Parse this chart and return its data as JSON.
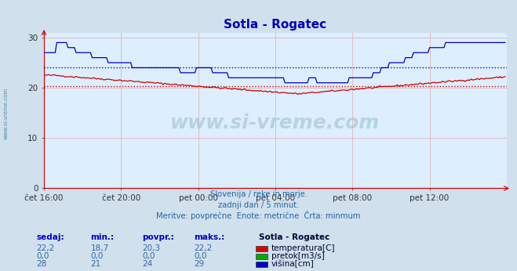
{
  "title": "Sotla - Rogatec",
  "bg_color": "#d0e0ec",
  "plot_bg_color": "#ddeeff",
  "title_color": "#0000bb",
  "watermark_text": "www.si-vreme.com",
  "subtitle_lines": [
    "Slovenija / reke in morje.",
    "zadnji dan / 5 minut.",
    "Meritve: povprečne  Enote: metrične  Črta: minmum"
  ],
  "legend_title": "Sotla - Rogatec",
  "legend_items": [
    {
      "label": "temperatura[C]",
      "color": "#dd0000"
    },
    {
      "label": "pretok[m3/s]",
      "color": "#00aa00"
    },
    {
      "label": "višina[cm]",
      "color": "#0000cc"
    }
  ],
  "table_headers": [
    "sedaj:",
    "min.:",
    "povpr.:",
    "maks.:"
  ],
  "table_rows": [
    [
      "22,2",
      "18,7",
      "20,3",
      "22,2"
    ],
    [
      "0,0",
      "0,0",
      "0,0",
      "0,0"
    ],
    [
      "28",
      "21",
      "24",
      "29"
    ]
  ],
  "xticklabels": [
    "čet 16:00",
    "čet 20:00",
    "pet 00:00",
    "pet 04:00",
    "pet 08:00",
    "pet 12:00"
  ],
  "xtick_positions": [
    0,
    48,
    96,
    144,
    192,
    240
  ],
  "ylim": [
    0,
    31
  ],
  "yticks": [
    0,
    10,
    20,
    30
  ],
  "num_points": 288,
  "temp_avg": 20.3,
  "height_avg": 24.0,
  "temp_min": 18.7,
  "temp_max": 22.2,
  "height_min": 21,
  "height_max": 29
}
